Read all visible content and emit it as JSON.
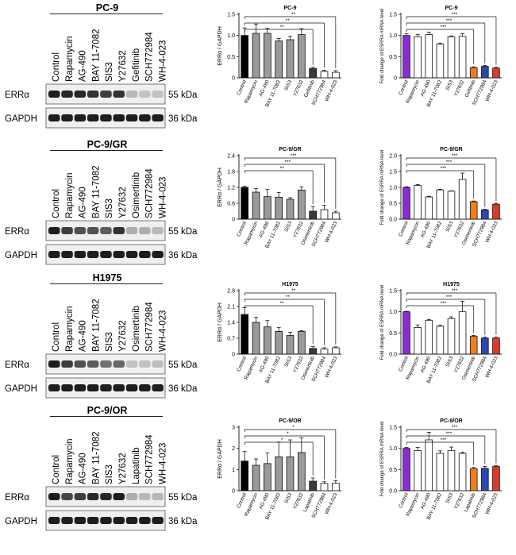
{
  "panels": [
    {
      "cell_line": "PC-9",
      "blot_lanes": [
        "Control",
        "Rapamycin",
        "AG-490",
        "BAY 11-7082",
        "SIS3",
        "Y27632",
        "Gefitinib",
        "SCH772984",
        "WH-4-023"
      ],
      "blot_rows": [
        {
          "label": "ERRα",
          "kda": "55 kDa",
          "bands": [
            1,
            0.95,
            0.95,
            0.9,
            0.85,
            0.9,
            0.25,
            0.2,
            0.2
          ]
        },
        {
          "label": "GAPDH",
          "kda": "36 kDa",
          "bands": [
            1,
            1,
            1,
            1,
            1,
            1,
            1,
            1,
            1
          ]
        }
      ]
    },
    {
      "cell_line": "PC-9/GR",
      "blot_lanes": [
        "Control",
        "Rapamycin",
        "AG-490",
        "BAY 11-7082",
        "SIS3",
        "Y27632",
        "Osimertinib",
        "SCH772984",
        "WH-4-023"
      ],
      "blot_rows": [
        {
          "label": "ERRα",
          "kda": "55 kDa",
          "bands": [
            1,
            0.85,
            0.75,
            0.75,
            0.7,
            0.9,
            0.3,
            0.3,
            0.25
          ]
        },
        {
          "label": "GAPDH",
          "kda": "36 kDa",
          "bands": [
            1,
            1,
            1,
            1,
            1,
            1,
            1,
            1,
            1
          ]
        }
      ]
    },
    {
      "cell_line": "H1975",
      "blot_lanes": [
        "Control",
        "Rapamycin",
        "AG-490",
        "BAY 11-7082",
        "SIS3",
        "Y27632",
        "Osimertinib",
        "SCH772984",
        "WH-4-023"
      ],
      "blot_rows": [
        {
          "label": "ERRα",
          "kda": "55 kDa",
          "bands": [
            1,
            0.85,
            0.75,
            0.7,
            0.6,
            0.65,
            0.2,
            0.2,
            0.22
          ]
        },
        {
          "label": "GAPDH",
          "kda": "36 kDa",
          "bands": [
            1,
            1,
            1,
            1,
            1,
            1,
            1,
            1,
            1
          ]
        }
      ]
    },
    {
      "cell_line": "PC-9/OR",
      "blot_lanes": [
        "Control",
        "Rapamycin",
        "AG-490",
        "BAY 11-7082",
        "SIS3",
        "Y27632",
        "Lapatinib",
        "SCH772984",
        "WH-4-023"
      ],
      "blot_rows": [
        {
          "label": "ERRα",
          "kda": "55 kDa",
          "bands": [
            1,
            0.8,
            0.85,
            0.95,
            0.95,
            1,
            0.3,
            0.25,
            0.25
          ]
        },
        {
          "label": "GAPDH",
          "kda": "36 kDa",
          "bands": [
            1,
            1,
            1,
            1,
            1,
            1,
            1,
            1,
            1
          ]
        }
      ]
    }
  ],
  "colors": {
    "ratio_bars": [
      "#000000",
      "#9a9a9a",
      "#9a9a9a",
      "#9a9a9a",
      "#9a9a9a",
      "#9a9a9a",
      "#3a3a3a",
      "#ffffff",
      "#ffffff"
    ],
    "mrna_bars": [
      "#8a2bd6",
      "#ffffff",
      "#ffffff",
      "#ffffff",
      "#ffffff",
      "#ffffff",
      "#f07f1f",
      "#2c48b8",
      "#e0392b"
    ]
  },
  "chart_data": [
    {
      "type": "bar",
      "title": "PC-9",
      "ylabel": "ERRα / GAPDH",
      "categories": [
        "Control",
        "Rapamycin",
        "AG-490",
        "BAY 11-7082",
        "SIS3",
        "Y27632",
        "Gefitinib",
        "SCH772984",
        "WH-4-023"
      ],
      "values": [
        1.0,
        1.05,
        1.05,
        0.87,
        0.9,
        1.02,
        0.22,
        0.15,
        0.13
      ],
      "errors": [
        0.18,
        0.22,
        0.12,
        0.06,
        0.08,
        0.14,
        0.03,
        0.03,
        0.04
      ],
      "ylim": [
        0,
        1.5
      ],
      "yticks": [
        "0",
        "0.5",
        "1.0",
        "1.5"
      ],
      "significance": [
        {
          "from": 0,
          "to": 8,
          "mark": "**"
        },
        {
          "from": 0,
          "to": 7,
          "mark": "**"
        },
        {
          "from": 0,
          "to": 6,
          "mark": "**"
        }
      ]
    },
    {
      "type": "bar",
      "title": "PC-9",
      "ylabel": "Fold change of ESRRA mRNA level",
      "categories": [
        "Control",
        "Rapamycin",
        "AG-490",
        "BAY 11-7082",
        "SIS3",
        "Y27632",
        "Gefitinib",
        "SCH772984",
        "WH-4-023"
      ],
      "values": [
        1.0,
        0.97,
        1.02,
        0.8,
        0.97,
        0.98,
        0.24,
        0.27,
        0.23
      ],
      "errors": [
        0.04,
        0.05,
        0.06,
        0.02,
        0.02,
        0.06,
        0.02,
        0.02,
        0.02
      ],
      "ylim": [
        0,
        1.5
      ],
      "yticks": [
        "0",
        "0.5",
        "1.0",
        "1.5"
      ],
      "significance": [
        {
          "from": 0,
          "to": 8,
          "mark": "***"
        },
        {
          "from": 0,
          "to": 7,
          "mark": "***"
        },
        {
          "from": 0,
          "to": 6,
          "mark": "***"
        }
      ]
    },
    {
      "type": "bar",
      "title": "PC-9/GR",
      "ylabel": "ERRα / GAPDH",
      "categories": [
        "Control",
        "Rapamycin",
        "AG-490",
        "BAY 11-7082",
        "SIS3",
        "Y27632",
        "Osimertinib",
        "SCH772984",
        "WH-4-023"
      ],
      "values": [
        1.2,
        1.02,
        0.85,
        0.83,
        0.75,
        1.1,
        0.3,
        0.36,
        0.24
      ],
      "errors": [
        0.04,
        0.14,
        0.28,
        0.18,
        0.06,
        0.12,
        0.18,
        0.16,
        0.06
      ],
      "ylim": [
        0,
        2.4
      ],
      "yticks": [
        "0",
        "0.6",
        "1.2",
        "1.8",
        "2.4"
      ],
      "significance": [
        {
          "from": 0,
          "to": 8,
          "mark": "***"
        },
        {
          "from": 0,
          "to": 7,
          "mark": "***"
        },
        {
          "from": 0,
          "to": 6,
          "mark": "**"
        }
      ]
    },
    {
      "type": "bar",
      "title": "PC-9/GR",
      "ylabel": "Fold change of ESRRA mRNA level",
      "categories": [
        "Control",
        "Rapamycin",
        "AG-490",
        "BAY 11-7082",
        "SIS3",
        "Y27632",
        "Osimertinib",
        "SCH772984",
        "WH-4-023"
      ],
      "values": [
        1.0,
        1.06,
        0.7,
        0.92,
        0.88,
        1.25,
        0.55,
        0.29,
        0.47
      ],
      "errors": [
        0.02,
        0.03,
        0.02,
        0.02,
        0.01,
        0.2,
        0.02,
        0.02,
        0.03
      ],
      "ylim": [
        0,
        2.0
      ],
      "yticks": [
        "0.0",
        "0.5",
        "1.0",
        "1.5",
        "2.0"
      ],
      "significance": [
        {
          "from": 0,
          "to": 8,
          "mark": "***"
        },
        {
          "from": 0,
          "to": 7,
          "mark": "***"
        },
        {
          "from": 0,
          "to": 6,
          "mark": "***"
        }
      ]
    },
    {
      "type": "bar",
      "title": "H1975",
      "ylabel": "ERRα / GAPDH",
      "categories": [
        "Control",
        "Rapamycin",
        "AG-490",
        "BAY 11-7082",
        "SIS3",
        "Y27632",
        "Osimertinib",
        "SCH772984",
        "WH-4-023"
      ],
      "values": [
        1.75,
        1.4,
        1.2,
        1.0,
        0.82,
        1.0,
        0.25,
        0.22,
        0.28
      ],
      "errors": [
        0.3,
        0.22,
        0.28,
        0.18,
        0.14,
        0.04,
        0.08,
        0.06,
        0.04
      ],
      "ylim": [
        0,
        2.8
      ],
      "yticks": [
        "0",
        "0.7",
        "1.4",
        "2.1",
        "2.8"
      ],
      "significance": [
        {
          "from": 0,
          "to": 8,
          "mark": "**"
        },
        {
          "from": 0,
          "to": 7,
          "mark": "**"
        },
        {
          "from": 0,
          "to": 6,
          "mark": "**"
        }
      ]
    },
    {
      "type": "bar",
      "title": "H1975",
      "ylabel": "Fold change of ESRRA mRNA level",
      "categories": [
        "Control",
        "Rapamycin",
        "AG-490",
        "BAY 11-7082",
        "SIS3",
        "Y27632",
        "Osimertinib",
        "SCH772984",
        "WH-4-023"
      ],
      "values": [
        1.0,
        0.63,
        0.8,
        0.66,
        0.84,
        1.0,
        0.42,
        0.38,
        0.38
      ],
      "errors": [
        0.01,
        0.06,
        0.02,
        0.02,
        0.04,
        0.25,
        0.02,
        0.02,
        0.02
      ],
      "ylim": [
        0,
        1.5
      ],
      "yticks": [
        "0.0",
        "0.5",
        "1.0",
        "1.5"
      ],
      "significance": [
        {
          "from": 0,
          "to": 8,
          "mark": "***"
        },
        {
          "from": 0,
          "to": 7,
          "mark": "***"
        },
        {
          "from": 0,
          "to": 6,
          "mark": "***"
        }
      ]
    },
    {
      "type": "bar",
      "title": "PC-9/OR",
      "ylabel": "ERRα / GAPDH",
      "categories": [
        "Control",
        "Rapamycin",
        "AG-490",
        "BAY 11-7082",
        "SIS3",
        "Y27632",
        "Lapatinib",
        "SCH772984",
        "WH-4-023"
      ],
      "values": [
        1.4,
        1.2,
        1.28,
        1.6,
        1.6,
        1.8,
        0.45,
        0.34,
        0.35
      ],
      "errors": [
        0.45,
        0.3,
        0.5,
        0.7,
        0.8,
        0.7,
        0.15,
        0.08,
        0.12
      ],
      "ylim": [
        0,
        3
      ],
      "yticks": [
        "0",
        "1",
        "2",
        "3"
      ],
      "significance": [
        {
          "from": 0,
          "to": 8,
          "mark": "*"
        },
        {
          "from": 0,
          "to": 7,
          "mark": "*"
        },
        {
          "from": 0,
          "to": 6,
          "mark": "*"
        }
      ]
    },
    {
      "type": "bar",
      "title": "PC-9/OR",
      "ylabel": "Fold change of ESRRA mRNA level",
      "categories": [
        "Control",
        "Rapamycin",
        "AG-490",
        "BAY 11-7082",
        "SIS3",
        "Y27632",
        "Lapatinib",
        "SCH772984",
        "WH-4-023"
      ],
      "values": [
        1.0,
        0.95,
        1.2,
        0.88,
        0.95,
        0.88,
        0.52,
        0.53,
        0.57
      ],
      "errors": [
        0.02,
        0.07,
        0.18,
        0.06,
        0.08,
        0.03,
        0.03,
        0.04,
        0.02
      ],
      "ylim": [
        0,
        1.5
      ],
      "yticks": [
        "0.0",
        "0.5",
        "1.0",
        "1.5"
      ],
      "significance": [
        {
          "from": 0,
          "to": 8,
          "mark": "***"
        },
        {
          "from": 0,
          "to": 7,
          "mark": "***"
        },
        {
          "from": 0,
          "to": 6,
          "mark": "***"
        }
      ]
    }
  ]
}
